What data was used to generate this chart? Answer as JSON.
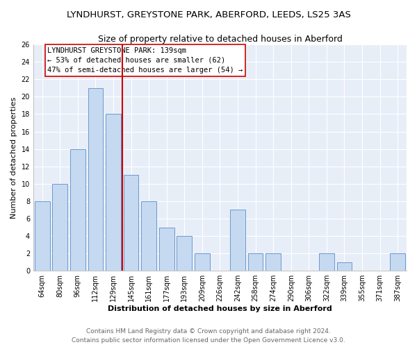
{
  "title": "LYNDHURST, GREYSTONE PARK, ABERFORD, LEEDS, LS25 3AS",
  "subtitle": "Size of property relative to detached houses in Aberford",
  "xlabel": "Distribution of detached houses by size in Aberford",
  "ylabel": "Number of detached properties",
  "categories": [
    "64sqm",
    "80sqm",
    "96sqm",
    "112sqm",
    "129sqm",
    "145sqm",
    "161sqm",
    "177sqm",
    "193sqm",
    "209sqm",
    "226sqm",
    "242sqm",
    "258sqm",
    "274sqm",
    "290sqm",
    "306sqm",
    "322sqm",
    "339sqm",
    "355sqm",
    "371sqm",
    "387sqm"
  ],
  "values": [
    8,
    10,
    14,
    21,
    18,
    11,
    8,
    5,
    4,
    2,
    0,
    7,
    2,
    2,
    0,
    0,
    2,
    1,
    0,
    0,
    2
  ],
  "bar_color": "#c5d9f1",
  "bar_edge_color": "#5b8cc8",
  "marker_line_color": "#cc0000",
  "annotation_line1": "LYNDHURST GREYSTONE PARK: 139sqm",
  "annotation_line2": "← 53% of detached houses are smaller (62)",
  "annotation_line3": "47% of semi-detached houses are larger (54) →",
  "ylim": [
    0,
    26
  ],
  "yticks": [
    0,
    2,
    4,
    6,
    8,
    10,
    12,
    14,
    16,
    18,
    20,
    22,
    24,
    26
  ],
  "footer1": "Contains HM Land Registry data © Crown copyright and database right 2024.",
  "footer2": "Contains public sector information licensed under the Open Government Licence v3.0.",
  "background_color": "#ffffff",
  "plot_background_color": "#e8eef8",
  "grid_color": "#ffffff",
  "title_fontsize": 9.5,
  "subtitle_fontsize": 9,
  "axis_label_fontsize": 8,
  "tick_fontsize": 7,
  "footer_fontsize": 6.5,
  "annotation_fontsize": 7.5
}
